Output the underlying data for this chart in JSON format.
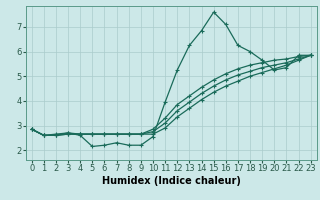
{
  "xlabel": "Humidex (Indice chaleur)",
  "background_color": "#cce8e8",
  "grid_color": "#aacccc",
  "line_color": "#1a6b5a",
  "xlim": [
    -0.5,
    23.5
  ],
  "ylim": [
    1.6,
    7.85
  ],
  "xticks": [
    0,
    1,
    2,
    3,
    4,
    5,
    6,
    7,
    8,
    9,
    10,
    11,
    12,
    13,
    14,
    15,
    16,
    17,
    18,
    19,
    20,
    21,
    22,
    23
  ],
  "yticks": [
    2,
    3,
    4,
    5,
    6,
    7
  ],
  "lines": [
    {
      "x": [
        0,
        1,
        2,
        3,
        4,
        5,
        6,
        7,
        8,
        9,
        10,
        11,
        12,
        13,
        14,
        15,
        16,
        17,
        18,
        19,
        20,
        21,
        22,
        23
      ],
      "y": [
        2.85,
        2.6,
        2.6,
        2.7,
        2.6,
        2.15,
        2.2,
        2.3,
        2.2,
        2.2,
        2.55,
        3.95,
        5.25,
        6.25,
        6.85,
        7.6,
        7.1,
        6.25,
        6.0,
        5.65,
        5.25,
        5.35,
        5.85,
        5.85
      ]
    },
    {
      "x": [
        0,
        1,
        2,
        3,
        4,
        5,
        6,
        7,
        8,
        9,
        10,
        11,
        12,
        13,
        14,
        15,
        16,
        17,
        18,
        19,
        20,
        21,
        22,
        23
      ],
      "y": [
        2.85,
        2.6,
        2.65,
        2.7,
        2.65,
        2.65,
        2.65,
        2.65,
        2.65,
        2.65,
        2.85,
        3.3,
        3.85,
        4.2,
        4.55,
        4.85,
        5.1,
        5.3,
        5.45,
        5.55,
        5.65,
        5.7,
        5.8,
        5.85
      ]
    },
    {
      "x": [
        0,
        1,
        2,
        3,
        4,
        5,
        6,
        7,
        8,
        9,
        10,
        11,
        12,
        13,
        14,
        15,
        16,
        17,
        18,
        19,
        20,
        21,
        22,
        23
      ],
      "y": [
        2.85,
        2.6,
        2.6,
        2.65,
        2.65,
        2.65,
        2.65,
        2.65,
        2.65,
        2.65,
        2.75,
        3.1,
        3.6,
        3.95,
        4.3,
        4.6,
        4.85,
        5.05,
        5.2,
        5.35,
        5.45,
        5.55,
        5.7,
        5.85
      ]
    },
    {
      "x": [
        0,
        1,
        2,
        3,
        4,
        5,
        6,
        7,
        8,
        9,
        10,
        11,
        12,
        13,
        14,
        15,
        16,
        17,
        18,
        19,
        20,
        21,
        22,
        23
      ],
      "y": [
        2.85,
        2.6,
        2.6,
        2.65,
        2.65,
        2.65,
        2.65,
        2.65,
        2.65,
        2.65,
        2.65,
        2.9,
        3.35,
        3.7,
        4.05,
        4.35,
        4.6,
        4.8,
        5.0,
        5.15,
        5.3,
        5.45,
        5.65,
        5.85
      ]
    }
  ],
  "marker": "+",
  "markersize": 3,
  "linewidth": 0.9,
  "xlabel_fontsize": 7,
  "tick_fontsize": 6
}
